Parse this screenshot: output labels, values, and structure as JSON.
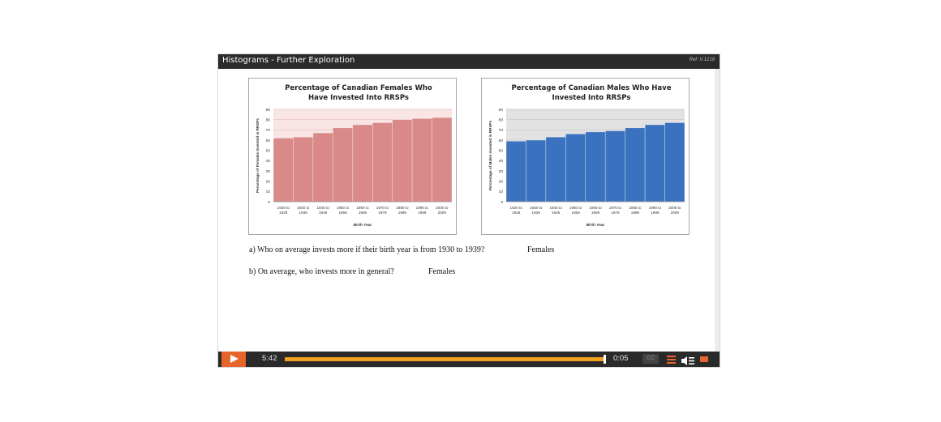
{
  "window": {
    "title": "Histograms - Further Exploration",
    "ref": "Ref: V.1219"
  },
  "colors": {
    "female_bar": "#d98a88",
    "male_bar": "#3a72bf",
    "accent": "#e8652a",
    "progress": "#f2a11f"
  },
  "chart_data": [
    {
      "type": "bar",
      "title": "Percentage of Canadian Females Who Have Invested Into RRSPs",
      "title_lines": [
        "Percentage of Canadian Females Who",
        "Have Invested Into RRSPs"
      ],
      "categories": [
        [
          "1920 to",
          "1929"
        ],
        [
          "1930 to",
          "1939"
        ],
        [
          "1940 to",
          "1949"
        ],
        [
          "1950 to",
          "1959"
        ],
        [
          "1960 to",
          "1969"
        ],
        [
          "1970 to",
          "1979"
        ],
        [
          "1980 to",
          "1989"
        ],
        [
          "1990 to",
          "1999"
        ],
        [
          "2000 to",
          "2009"
        ]
      ],
      "values": [
        62,
        63,
        67,
        72,
        75,
        77,
        80,
        81,
        82
      ],
      "xlabel": "Birth Year",
      "ylabel": "Percentage of Females Invested in RRSPs",
      "ylim": [
        0,
        90
      ],
      "yticks": [
        "0",
        "10",
        "20",
        "30",
        "40",
        "50",
        "60",
        "70",
        "80",
        "90"
      ],
      "grid": true
    },
    {
      "type": "bar",
      "title": "Percentage of Canadian Males Who Have Invested Into RRSPs",
      "title_lines": [
        "Percentage of Canadian Males Who Have",
        "Invested Into RRSPs"
      ],
      "categories": [
        [
          "1920 to",
          "1929"
        ],
        [
          "1930 to",
          "1939"
        ],
        [
          "1940 to",
          "1949"
        ],
        [
          "1950 to",
          "1959"
        ],
        [
          "1960 to",
          "1969"
        ],
        [
          "1970 to",
          "1979"
        ],
        [
          "1980 to",
          "1989"
        ],
        [
          "1990 to",
          "1999"
        ],
        [
          "2000 to",
          "2009"
        ]
      ],
      "values": [
        59,
        60,
        63,
        66,
        68,
        69,
        72,
        75,
        77
      ],
      "xlabel": "Birth Year",
      "ylabel": "Percentage of Males Invested in RRSPs",
      "ylim": [
        0,
        90
      ],
      "yticks": [
        "0",
        "10",
        "20",
        "30",
        "40",
        "50",
        "60",
        "70",
        "80",
        "90"
      ],
      "grid": true
    }
  ],
  "questions": [
    {
      "text": "a)   Who on average invests more if their birth year is from 1930 to 1939?",
      "answer": "Females"
    },
    {
      "text": "b)   On average, who invests more in general?",
      "answer": "Females"
    }
  ],
  "controls": {
    "elapsed": "5:42",
    "total": "0:05",
    "progress": 0.995,
    "cc_label": "CC",
    "icons": [
      "play-icon",
      "cc-icon",
      "menu-icon",
      "volume-icon",
      "fullscreen-icon"
    ]
  }
}
